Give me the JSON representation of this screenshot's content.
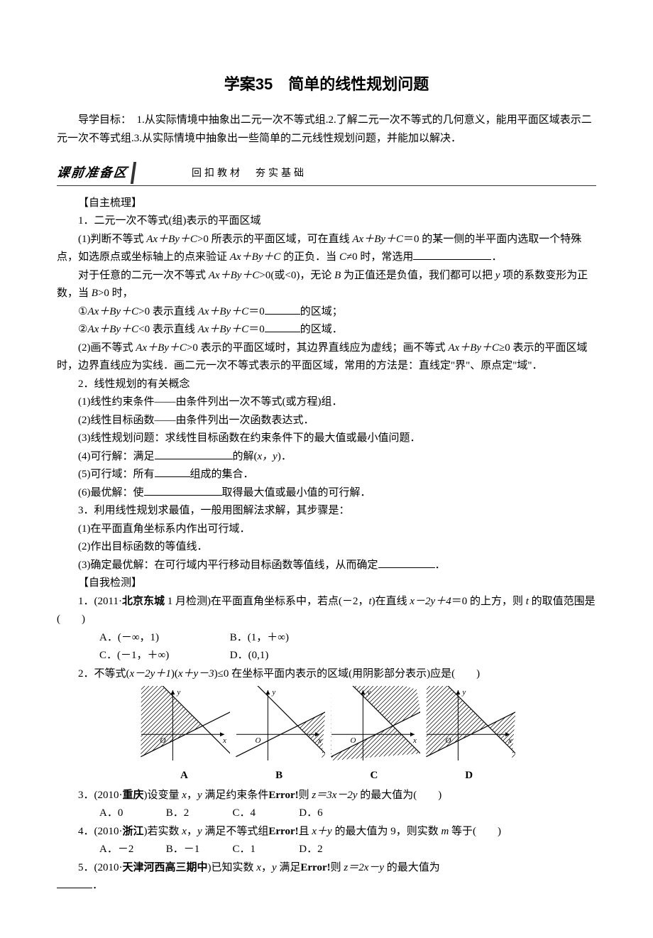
{
  "title": "学案35　简单的线性规划问题",
  "intro": "导学目标：　1.从实际情境中抽象出二元一次不等式组.2.了解二元一次不等式的几何意义，能用平面区域表示二元一次不等式组.3.从实际情境中抽象出一些简单的二元线性规划问题，并能加以解决．",
  "banner": {
    "left": "课前准备区",
    "right": "回扣教材　夯实基础"
  },
  "h_self": "【自主梳理】",
  "s1_title": "1．二元一次不等式(组)表示的平面区域",
  "s1_p1a": "(1)判断不等式 ",
  "s1_p1b": ">0 所表示的平面区域，可在直线 ",
  "s1_p1c": "＝0 的某一侧的半平面内选取一个特殊点，如选原点或坐标轴上的点来验证 ",
  "s1_p1d": " 的正负．当 ",
  "s1_p1e": "≠0 时，常选用",
  "s1_p1f": "．",
  "s1_p2a": "对于任意的二元一次不等式 ",
  "s1_p2b": ">0(或<0)，无论 ",
  "s1_p2c": " 为正值还是负值，我们都可以把 ",
  "s1_p2d": " 项的系数变形为正数，当 ",
  "s1_p2e": ">0 时，",
  "s1_li1a": "①",
  "s1_li1b": ">0 表示直线 ",
  "s1_li1c": "＝0",
  "s1_li1d": "的区域；",
  "s1_li2a": "②",
  "s1_li2b": "<0 表示直线 ",
  "s1_li2c": "＝0",
  "s1_li2d": "的区域．",
  "s1_p3a": "(2)画不等式 ",
  "s1_p3b": ">0 表示的平面区域时，其边界直线应为虚线；画不等式 ",
  "s1_p3c": "≥0 表示的平面区域时，边界直线应为实线．画二元一次不等式表示的平面区域，常用的方法是：直线定\"界\"、原点定\"域\"．",
  "s2_title": "2．线性规划的有关概念",
  "s2_1": "(1)线性约束条件——由条件列出一次不等式(或方程)组．",
  "s2_2": "(2)线性目标函数——由条件列出一次函数表达式．",
  "s2_3": "(3)线性规划问题：求线性目标函数在约束条件下的最大值或最小值问题．",
  "s2_4a": "(4)可行解：满足",
  "s2_4b": "的解(",
  "s2_4c": ")．",
  "s2_5a": "(5)可行域：所有",
  "s2_5b": "组成的集合．",
  "s2_6a": "(6)最优解：使",
  "s2_6b": "取得最大值或最小值的可行解．",
  "s3_title": "3．利用线性规划求最值，一般用图解法求解，其步骤是：",
  "s3_1": "(1)在平面直角坐标系内作出可行域．",
  "s3_2": "(2)作出目标函数的等值线．",
  "s3_3a": "(3)确定最优解：在可行域内平行移动目标函数等值线，从而确定",
  "s3_3b": "．",
  "h_check": "【自我检测】",
  "q1a": "1．(2011·",
  "q1b": "北京东城",
  "q1c": " 1 月检测)在平面直角坐标系中，若点(－2，",
  "q1d": ")在直线 ",
  "q1e": "＝0 的上方，则 ",
  "q1f": " 的取值范围是(　　)",
  "q1A": "A．(－∞，1)",
  "q1B": "B．(1，＋∞)",
  "q1C": "C．(－1，＋∞)",
  "q1D": "D．(0,1)",
  "q2a": "2．不等式(",
  "q2b": ")(",
  "q2c": ")≤0 在坐标平面内表示的区域(用阴影部分表示)应是(　　)",
  "figLabels": {
    "A": "A",
    "B": "B",
    "C": "C",
    "D": "D"
  },
  "fig": {
    "panels": [
      "A",
      "B",
      "C",
      "D"
    ],
    "width": 130,
    "height": 110,
    "axis_color": "#000",
    "line_color": "#000",
    "hatch_color": "#000",
    "background": "#ffffff",
    "line1": {
      "slope": 0.5,
      "intercept": -0.5
    },
    "line2": {
      "slope": -1,
      "intercept": 3
    },
    "hatch_spacing": 6,
    "shade": {
      "A": "left-of-both-same-side",
      "B": "right-of-both-same-side",
      "C": "between-lines",
      "D": "outside-lines"
    }
  },
  "q3a": "3．(2010·",
  "q3b": "重庆",
  "q3c": ")设变量 ",
  "q3d": "，",
  "q3e": " 满足约束条件",
  "q3err": "Error!",
  "q3f": "则 ",
  "q3g": " 的最大值为(　　)",
  "q3A": "A．0",
  "q3B": "B．2",
  "q3C": "C．4",
  "q3D": "D．6",
  "q4a": "4．(2010·",
  "q4b": "浙江",
  "q4c": ")若实数 ",
  "q4d": "，",
  "q4e": " 满足不等式组",
  "q4err": "Error!",
  "q4f": "且 ",
  "q4g": " 的最大值为 9，则实数 ",
  "q4h": " 等于(　　)",
  "q4A": "A．－2",
  "q4B": "B．－1",
  "q4C": "C．1",
  "q4D": "D．2",
  "q5a": "5．(2010·",
  "q5b": "天津河西高三期中",
  "q5c": ")已知实数 ",
  "q5d": "，",
  "q5e": " 满足",
  "q5err": "Error!",
  "q5f": "则 ",
  "q5g": " 的最大值为",
  "q5h": "．",
  "expr": {
    "AxByC": "Ax＋By＋C",
    "C": "C",
    "B": "B",
    "y": "y",
    "x": "x",
    "t": "t",
    "m": "m",
    "z": "z",
    "xm2yp4": "x－2y＋4",
    "xm2yp1": "x－2y＋1",
    "xpy_m3": "x＋y－3",
    "z3xm2y": "z＝3x－2y",
    "xpy": "x＋y",
    "z2xmy": "z＝2x－y",
    "xy": "x，y"
  }
}
